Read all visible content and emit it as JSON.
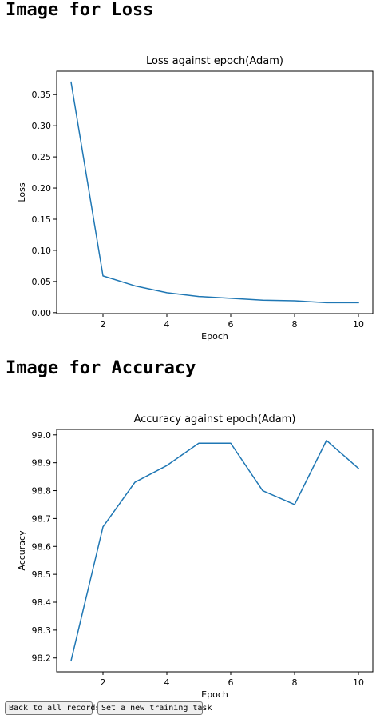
{
  "sections": {
    "loss_heading": "Image for Loss",
    "accuracy_heading": "Image for Accuracy"
  },
  "buttons": {
    "back_label": "Back to all records",
    "new_task_label": "Set a new training task"
  },
  "colors": {
    "line": "#1f77b4"
  },
  "chart_data": [
    {
      "type": "line",
      "title": "Loss against epoch(Adam)",
      "xlabel": "Epoch",
      "ylabel": "Loss",
      "x": [
        1,
        2,
        3,
        4,
        5,
        6,
        7,
        8,
        9,
        10
      ],
      "series": [
        {
          "values": [
            0.37,
            0.059,
            0.043,
            0.032,
            0.026,
            0.023,
            0.02,
            0.019,
            0.016,
            0.016
          ]
        }
      ],
      "xlim": [
        0.55,
        10.45
      ],
      "ylim": [
        -0.0015,
        0.3875
      ],
      "xticks": [
        2,
        4,
        6,
        8,
        10
      ],
      "xtick_labels": [
        "2",
        "4",
        "6",
        "8",
        "10"
      ],
      "yticks": [
        0.0,
        0.05,
        0.1,
        0.15,
        0.2,
        0.25,
        0.3,
        0.35
      ],
      "ytick_labels": [
        "0.00",
        "0.05",
        "0.10",
        "0.15",
        "0.20",
        "0.25",
        "0.30",
        "0.35"
      ],
      "grid": false
    },
    {
      "type": "line",
      "title": "Accuracy against epoch(Adam)",
      "xlabel": "Epoch",
      "ylabel": "Accuracy",
      "x": [
        1,
        2,
        3,
        4,
        5,
        6,
        7,
        8,
        9,
        10
      ],
      "series": [
        {
          "values": [
            98.19,
            98.67,
            98.83,
            98.89,
            98.97,
            98.97,
            98.8,
            98.75,
            98.98,
            98.88
          ]
        }
      ],
      "xlim": [
        0.55,
        10.45
      ],
      "ylim": [
        98.1505,
        99.0195
      ],
      "xticks": [
        2,
        4,
        6,
        8,
        10
      ],
      "xtick_labels": [
        "2",
        "4",
        "6",
        "8",
        "10"
      ],
      "yticks": [
        98.2,
        98.3,
        98.4,
        98.5,
        98.6,
        98.7,
        98.8,
        98.9,
        99.0
      ],
      "ytick_labels": [
        "98.2",
        "98.3",
        "98.4",
        "98.5",
        "98.6",
        "98.7",
        "98.8",
        "98.9",
        "99.0"
      ],
      "grid": false
    }
  ]
}
